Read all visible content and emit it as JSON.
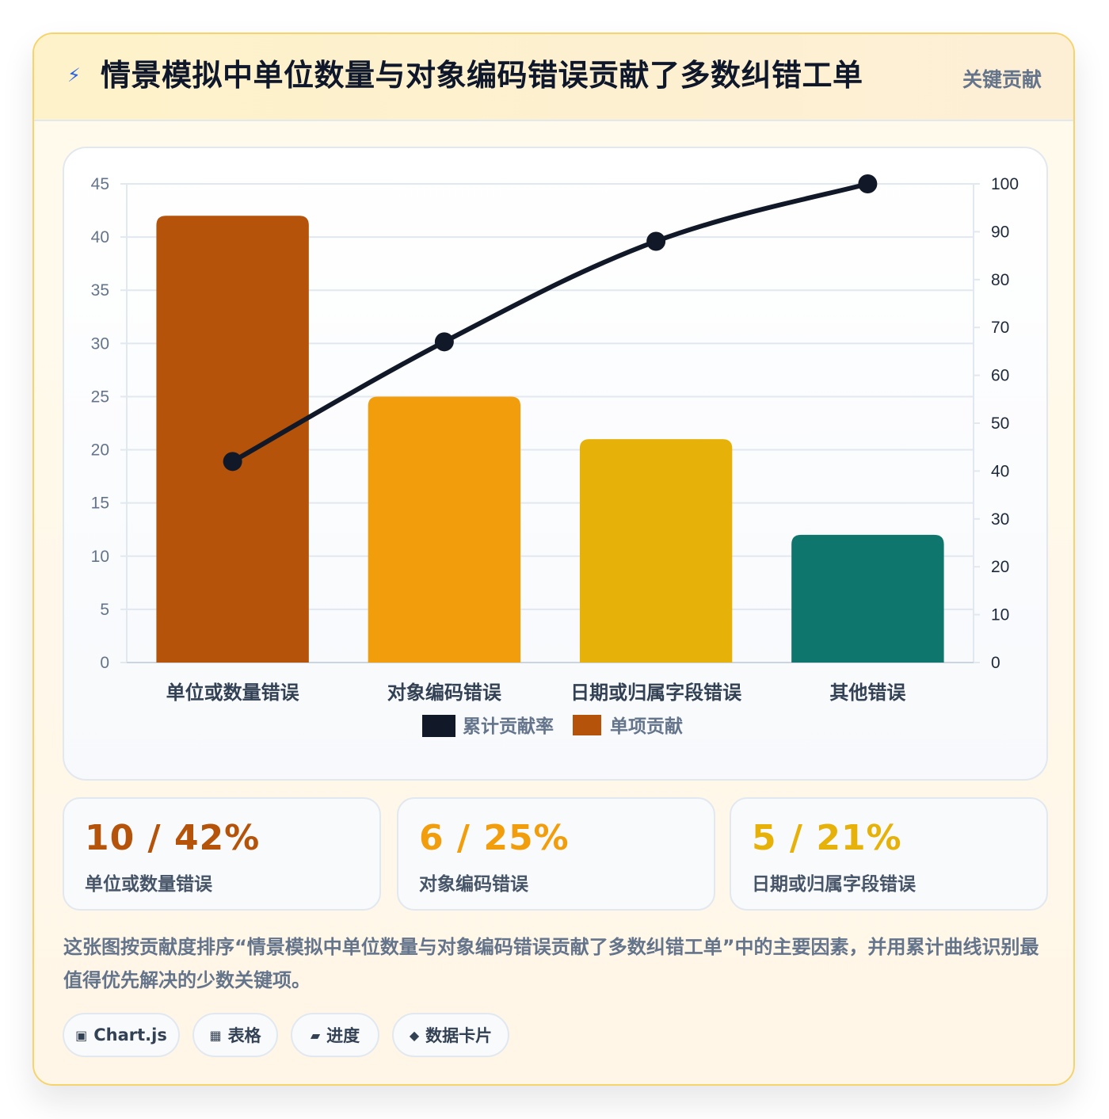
{
  "header": {
    "icon": "lightning-icon",
    "title": "情景模拟中单位数量与对象编码错误贡献了多数纠错工单",
    "tag": "关键贡献"
  },
  "chart_data": {
    "type": "bar",
    "categories": [
      "单位或数量错误",
      "对象编码错误",
      "日期或归属字段错误",
      "其他错误"
    ],
    "series": [
      {
        "name": "单项贡献",
        "type": "bar",
        "axis": "left",
        "values": [
          42,
          25,
          21,
          12
        ]
      },
      {
        "name": "累计贡献率",
        "type": "line",
        "axis": "right",
        "values": [
          42,
          67,
          88,
          100
        ]
      }
    ],
    "bar_colors": [
      "#b45309",
      "#f29e0c",
      "#e6b20a",
      "#0f766e"
    ],
    "line_color": "#111827",
    "ylim_left": [
      0,
      45
    ],
    "yticks_left": [
      0,
      5,
      10,
      15,
      20,
      25,
      30,
      35,
      40,
      45
    ],
    "ylim_right": [
      0,
      100
    ],
    "yticks_right": [
      0,
      10,
      20,
      30,
      40,
      50,
      60,
      70,
      80,
      90,
      100
    ],
    "legend": [
      {
        "label": "累计贡献率",
        "color": "#111827"
      },
      {
        "label": "单项贡献",
        "color": "#b45309"
      }
    ],
    "legend_position": "bottom",
    "grid": true
  },
  "stats": [
    {
      "value": "10 / 42%",
      "label": "单位或数量错误",
      "color": "#b45309"
    },
    {
      "value": "6 / 25%",
      "label": "对象编码错误",
      "color": "#f29e0c"
    },
    {
      "value": "5 / 21%",
      "label": "日期或归属字段错误",
      "color": "#e6b20a"
    }
  ],
  "description": "这张图按贡献度排序“情景模拟中单位数量与对象编码错误贡献了多数纠错工单”中的主要因素，并用累计曲线识别最值得优先解决的少数关键项。",
  "pills": [
    {
      "icon": "▣",
      "icon_name": "chart-icon",
      "label": "Chart.js"
    },
    {
      "icon": "▦",
      "icon_name": "table-icon",
      "label": "表格"
    },
    {
      "icon": "▰",
      "icon_name": "progress-icon",
      "label": "进度"
    },
    {
      "icon": "◆",
      "icon_name": "card-icon",
      "label": "数据卡片"
    }
  ]
}
